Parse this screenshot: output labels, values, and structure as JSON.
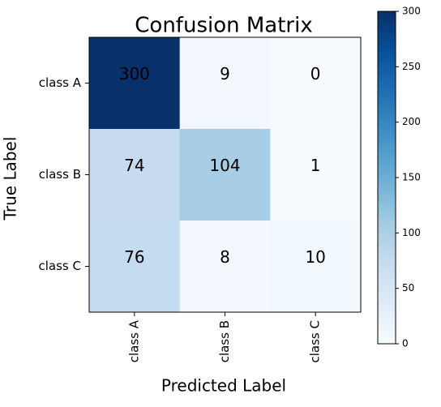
{
  "chart_data": {
    "type": "heatmap",
    "title": "Confusion Matrix",
    "x_label": "Predicted Label",
    "y_label": "True Label",
    "x_categories": [
      "class A",
      "class B",
      "class C"
    ],
    "y_categories": [
      "class A",
      "class B",
      "class C"
    ],
    "z": [
      [
        300,
        9,
        0
      ],
      [
        74,
        104,
        1
      ],
      [
        76,
        8,
        10
      ]
    ],
    "zlim": [
      0,
      300
    ],
    "zticks": [
      0,
      50,
      100,
      150,
      200,
      250,
      300
    ],
    "colorscale": [
      "#f7fbff",
      "#deebf7",
      "#c6dbef",
      "#9ecae1",
      "#6baed6",
      "#4292c6",
      "#2171b5",
      "#08519c",
      "#08306b"
    ]
  }
}
